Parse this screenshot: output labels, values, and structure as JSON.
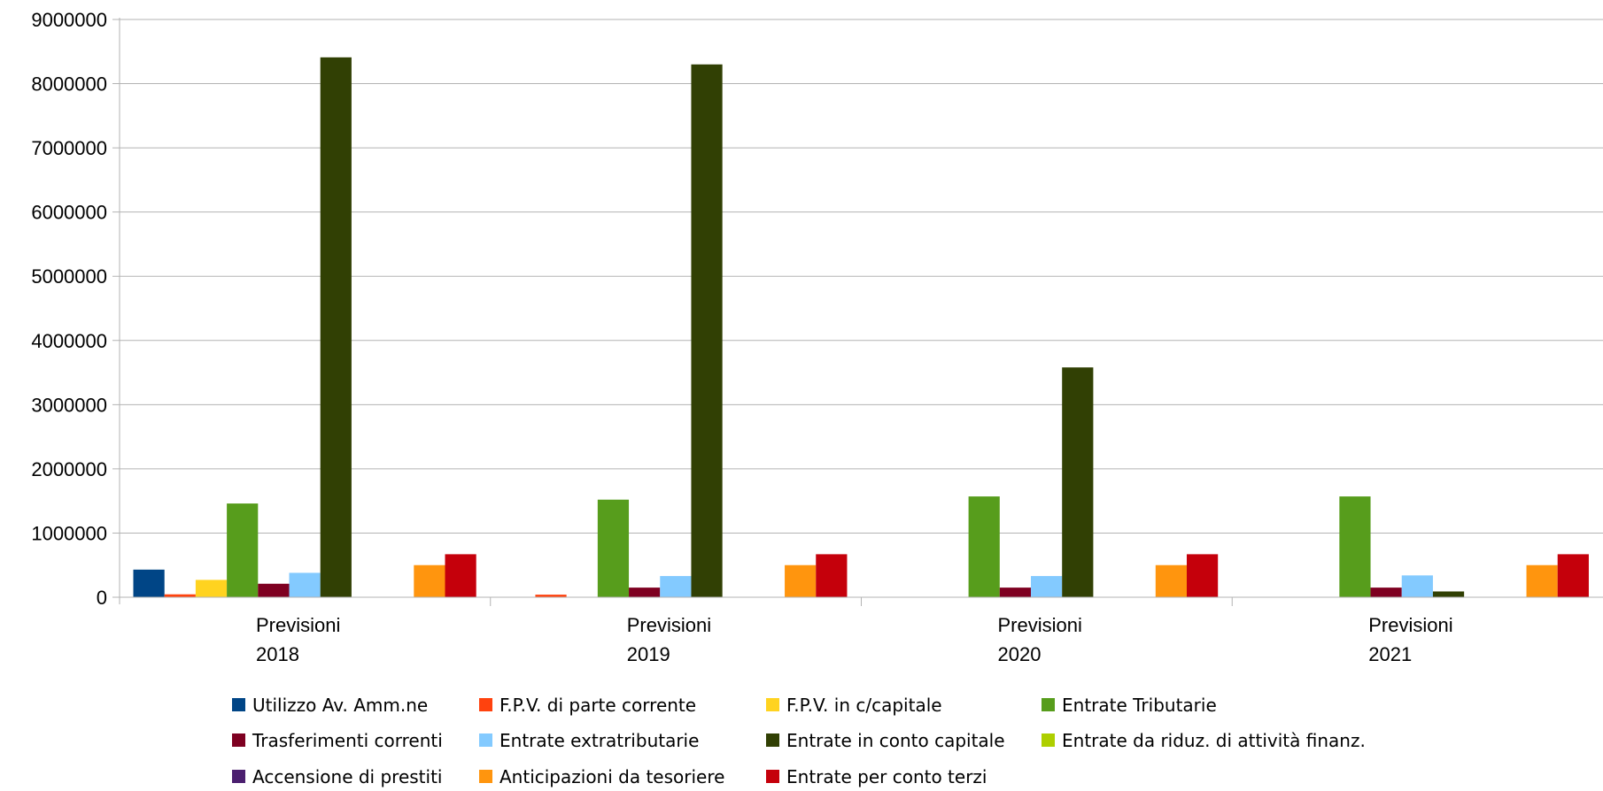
{
  "chart_data": {
    "type": "bar",
    "categories": [
      [
        "Previsioni",
        "2018"
      ],
      [
        "Previsioni",
        "2019"
      ],
      [
        "Previsioni",
        "2020"
      ],
      [
        "Previsioni",
        "2021"
      ]
    ],
    "ylim": [
      0,
      9000000
    ],
    "yticks": [
      "0",
      "1000000",
      "2000000",
      "3000000",
      "4000000",
      "5000000",
      "6000000",
      "7000000",
      "8000000",
      "9000000"
    ],
    "grid": true,
    "legend_position": "bottom",
    "series": [
      {
        "name": "Utilizzo Av. Amm.ne",
        "color": "#004586",
        "values": [
          430000,
          0,
          0,
          0
        ]
      },
      {
        "name": "F.P.V. di parte corrente",
        "color": "#ff420e",
        "values": [
          45000,
          40000,
          0,
          0
        ]
      },
      {
        "name": "F.P.V.  in c/capitale",
        "color": "#ffd320",
        "values": [
          270000,
          0,
          0,
          0
        ]
      },
      {
        "name": "Entrate Tributarie",
        "color": "#579d1c",
        "values": [
          1460000,
          1520000,
          1570000,
          1570000
        ]
      },
      {
        "name": "Trasferimenti correnti",
        "color": "#7e0021",
        "values": [
          210000,
          150000,
          150000,
          150000
        ]
      },
      {
        "name": "Entrate extratributarie",
        "color": "#83caff",
        "values": [
          380000,
          330000,
          330000,
          340000
        ]
      },
      {
        "name": "Entrate in conto capitale",
        "color": "#314004",
        "values": [
          8410000,
          8300000,
          3580000,
          90000
        ]
      },
      {
        "name": "Entrate da riduz. di attività finanz.",
        "color": "#aecf00",
        "values": [
          0,
          0,
          0,
          0
        ]
      },
      {
        "name": "Accensione di prestiti",
        "color": "#4b1f6f",
        "values": [
          0,
          0,
          0,
          0
        ]
      },
      {
        "name": "Anticipazioni da tesoriere",
        "color": "#ff950e",
        "values": [
          500000,
          500000,
          500000,
          500000
        ]
      },
      {
        "name": "Entrate per conto terzi",
        "color": "#c5000b",
        "values": [
          670000,
          670000,
          670000,
          670000
        ]
      }
    ]
  }
}
